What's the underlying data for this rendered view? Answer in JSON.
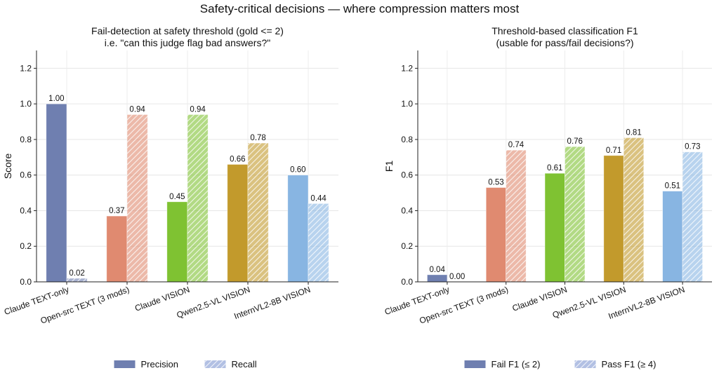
{
  "suptitle": "Safety-critical decisions — where compression matters most",
  "chart_data": [
    {
      "type": "bar",
      "title_line1": "Fail-detection at safety threshold (gold <= 2)",
      "title_line2": "i.e. \"can this judge flag bad answers?\"",
      "ylabel": "Score",
      "xlabel": "",
      "ylim": [
        0,
        1.3
      ],
      "yticks": [
        "0.0",
        "0.2",
        "0.4",
        "0.6",
        "0.8",
        "1.0",
        "1.2"
      ],
      "grid": true,
      "legend_position": "bottom-center",
      "categories": [
        "Claude TEXT-only",
        "Open-src TEXT (3 mods)",
        "Claude VISION",
        "Qwen2.5-VL VISION",
        "InternVL2-8B VISION"
      ],
      "colors": [
        "#6f7fb0",
        "#e08a70",
        "#7fc232",
        "#c29a2c",
        "#88b5e2"
      ],
      "series": [
        {
          "name": "Precision",
          "values": [
            1.0,
            0.37,
            0.45,
            0.66,
            0.6
          ],
          "labels": [
            "1.00",
            "0.37",
            "0.45",
            "0.66",
            "0.60"
          ],
          "hatched": false
        },
        {
          "name": "Recall",
          "values": [
            0.02,
            0.94,
            0.94,
            0.78,
            0.44
          ],
          "labels": [
            "0.02",
            "0.94",
            "0.94",
            "0.78",
            "0.44"
          ],
          "hatched": true
        }
      ]
    },
    {
      "type": "bar",
      "title_line1": "Threshold-based classification F1",
      "title_line2": "(usable for pass/fail decisions?)",
      "ylabel": "F1",
      "xlabel": "",
      "ylim": [
        0,
        1.3
      ],
      "yticks": [
        "0.0",
        "0.2",
        "0.4",
        "0.6",
        "0.8",
        "1.0",
        "1.2"
      ],
      "grid": true,
      "legend_position": "bottom-center",
      "categories": [
        "Claude TEXT-only",
        "Open-src TEXT (3 mods)",
        "Claude VISION",
        "Qwen2.5-VL VISION",
        "InternVL2-8B VISION"
      ],
      "colors": [
        "#6f7fb0",
        "#e08a70",
        "#7fc232",
        "#c29a2c",
        "#88b5e2"
      ],
      "series": [
        {
          "name": "Fail F1 (≤ 2)",
          "values": [
            0.04,
            0.53,
            0.61,
            0.71,
            0.51
          ],
          "labels": [
            "0.04",
            "0.53",
            "0.61",
            "0.71",
            "0.51"
          ],
          "hatched": false
        },
        {
          "name": "Pass F1 (≥ 4)",
          "values": [
            0.0,
            0.74,
            0.76,
            0.81,
            0.73
          ],
          "labels": [
            "0.00",
            "0.74",
            "0.76",
            "0.81",
            "0.73"
          ],
          "hatched": true
        }
      ]
    }
  ]
}
